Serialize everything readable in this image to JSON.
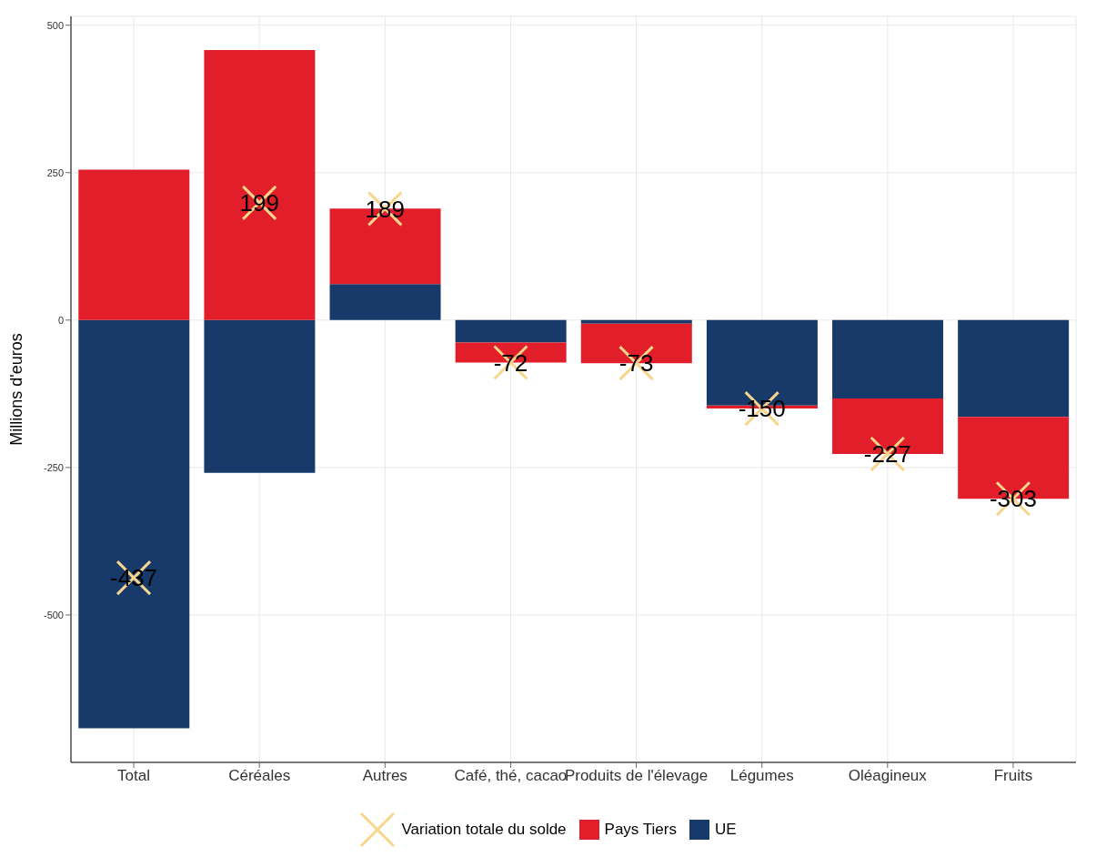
{
  "chart_data": {
    "type": "bar",
    "ylabel": "Millions d'euros",
    "categories": [
      "Total",
      "Céréales",
      "Autres",
      "Café, thé, cacao",
      "Produits de l'élevage",
      "Légumes",
      "Oléagineux",
      "Fruits"
    ],
    "series": [
      {
        "name": "UE",
        "color": "#173a6b",
        "values": [
          -692,
          -259,
          61,
          -38,
          -6,
          -145,
          -133,
          -164
        ]
      },
      {
        "name": "Pays Tiers",
        "color": "#e31e2b",
        "values": [
          255,
          458,
          128,
          -34,
          -67,
          -5,
          -94,
          -139
        ]
      },
      {
        "name": "Variation totale du solde",
        "type": "scatter",
        "color": "#f7d58a",
        "marker": "cross",
        "data_labels": true,
        "values": [
          -437,
          199,
          189,
          -72,
          -73,
          -150,
          -227,
          -303
        ]
      }
    ],
    "stacked": true,
    "ylim": [
      -750,
      515
    ],
    "yticks": [
      -500,
      -250,
      0,
      250,
      500
    ],
    "grid": true,
    "legend": "bottom"
  }
}
